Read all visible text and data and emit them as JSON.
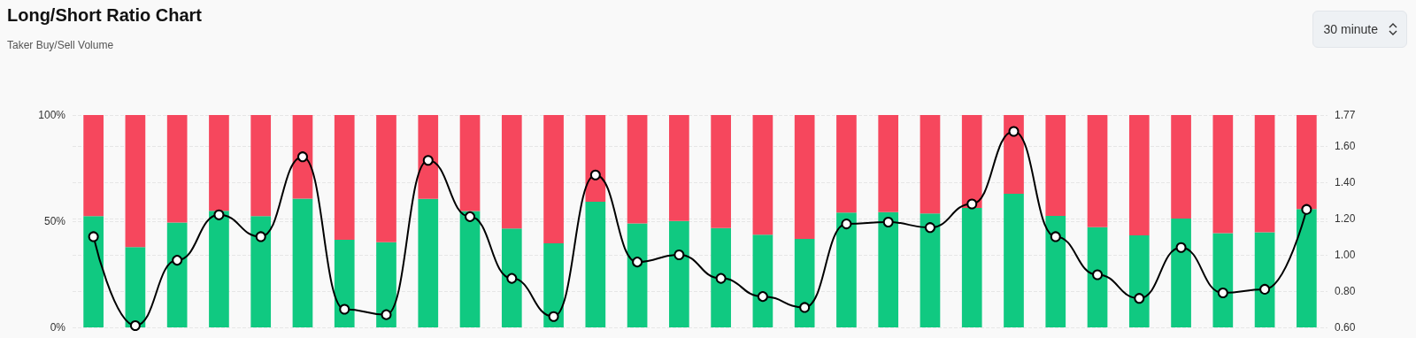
{
  "chart_data": {
    "type": "bar",
    "title": "Long/Short Ratio Chart",
    "subtitle": "Taker Buy/Sell Volume",
    "annotations": [
      "30 minute"
    ],
    "categories": [
      null,
      null,
      null,
      null,
      null,
      null,
      null,
      null,
      null,
      null,
      null,
      null,
      null,
      null,
      null,
      null,
      null,
      null,
      null,
      null,
      null,
      null,
      null,
      null,
      null,
      null,
      null,
      null,
      null,
      null
    ],
    "stacked": true,
    "grid": true,
    "ylim": [
      0,
      100
    ],
    "yticks": [
      {
        "value": 0,
        "label": "0%"
      },
      {
        "value": 50,
        "label": "50%"
      },
      {
        "value": 100,
        "label": "100%"
      }
    ],
    "y2lim": [
      0.6,
      1.77
    ],
    "y2ticks": [
      {
        "value": 0.6,
        "label": "0.60"
      },
      {
        "value": 0.8,
        "label": "0.80"
      },
      {
        "value": 1.0,
        "label": "1.00"
      },
      {
        "value": 1.2,
        "label": "1.20"
      },
      {
        "value": 1.4,
        "label": "1.40"
      },
      {
        "value": 1.6,
        "label": "1.60"
      },
      1.77
    ],
    "series": [
      {
        "color": "#10c981",
        "values": [
          52.4,
          37.8,
          49.4,
          54.9,
          52.4,
          60.6,
          41.3,
          40.1,
          60.5,
          54.8,
          46.6,
          39.6,
          59.2,
          49.0,
          50.1,
          46.8,
          43.6,
          41.7,
          54.1,
          54.3,
          53.6,
          56.3,
          62.9,
          52.5,
          47.2,
          43.3,
          51.3,
          44.4,
          44.8,
          55.7
        ]
      },
      {
        "color": "#f6475d",
        "values": [
          47.6,
          62.2,
          50.6,
          45.1,
          47.6,
          39.4,
          58.7,
          59.9,
          39.5,
          45.2,
          53.4,
          60.4,
          40.8,
          51.0,
          49.9,
          53.2,
          56.4,
          58.3,
          45.9,
          45.7,
          46.4,
          43.7,
          37.1,
          47.5,
          52.8,
          56.7,
          48.7,
          55.6,
          55.2,
          44.3
        ]
      },
      {
        "type": "line",
        "axis": "y2",
        "color": "#000000",
        "marker": "circle",
        "line_style": "solid",
        "values": [
          1.1,
          0.61,
          0.97,
          1.22,
          1.1,
          1.54,
          0.7,
          0.67,
          1.52,
          1.21,
          0.87,
          0.66,
          1.44,
          0.96,
          1.0,
          0.87,
          0.77,
          0.71,
          1.17,
          1.18,
          1.15,
          1.28,
          1.68,
          1.1,
          0.89,
          0.76,
          1.04,
          0.79,
          0.81,
          1.25
        ]
      }
    ]
  }
}
